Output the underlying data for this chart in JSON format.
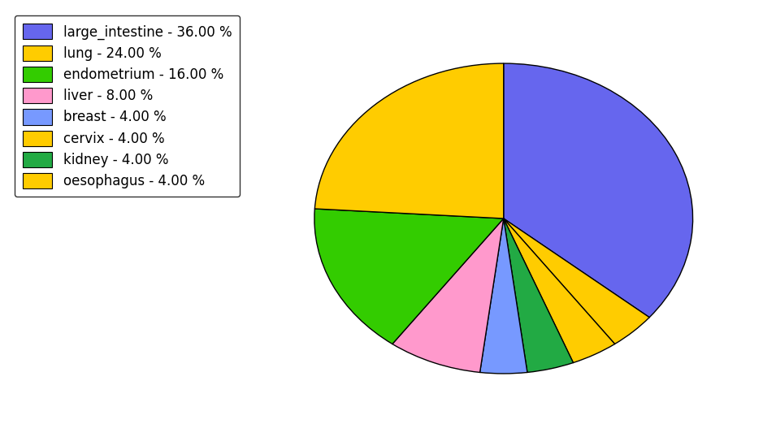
{
  "labels": [
    "large_intestine",
    "oesophagus",
    "cervix",
    "kidney",
    "breast",
    "liver",
    "endometrium",
    "lung"
  ],
  "values": [
    36.0,
    4.0,
    4.0,
    4.0,
    4.0,
    8.0,
    16.0,
    24.0
  ],
  "colors": [
    "#6666ee",
    "#ffcc00",
    "#ffcc00",
    "#22aa44",
    "#7799ff",
    "#ff99cc",
    "#33cc00",
    "#ffcc00"
  ],
  "legend_labels": [
    "large_intestine - 36.00 %",
    "lung - 24.00 %",
    "endometrium - 16.00 %",
    "liver - 8.00 %",
    "breast - 4.00 %",
    "cervix - 4.00 %",
    "kidney - 4.00 %",
    "oesophagus - 4.00 %"
  ],
  "legend_colors": [
    "#6666ee",
    "#ffcc00",
    "#33cc00",
    "#ff99cc",
    "#7799ff",
    "#ffcc00",
    "#22aa44",
    "#ffcc00"
  ],
  "startangle": 90,
  "figsize": [
    9.39,
    5.38
  ],
  "dpi": 100
}
